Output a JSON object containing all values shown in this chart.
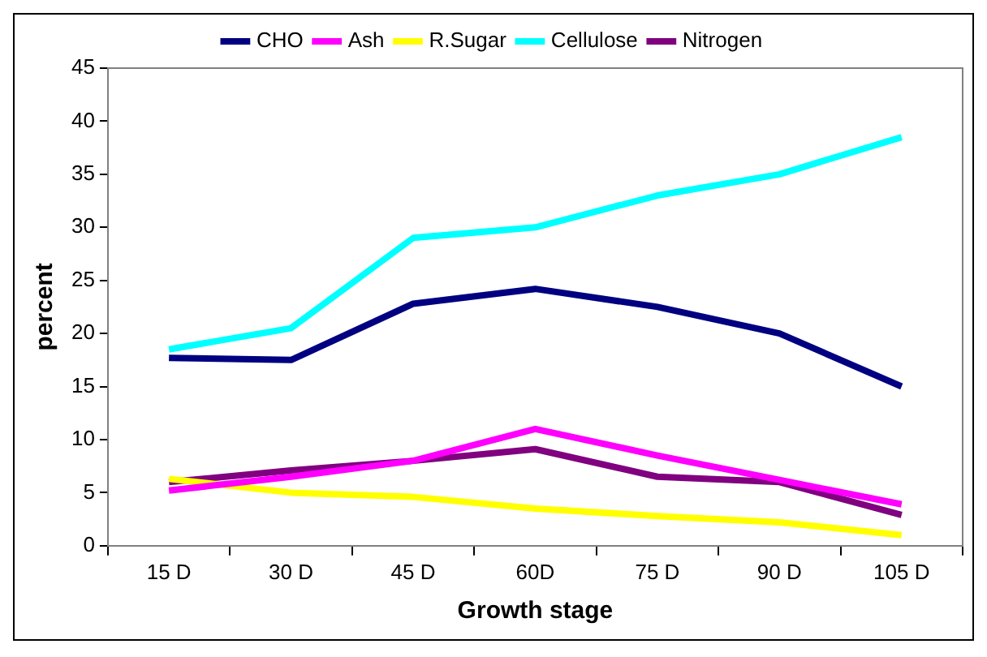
{
  "chart_data": {
    "type": "line",
    "xlabel": "Growth stage",
    "ylabel": "percent",
    "categories": [
      "15 D",
      "30 D",
      "45 D",
      "60D",
      "75 D",
      "90 D",
      "105 D"
    ],
    "series": [
      {
        "name": "CHO",
        "color": "#000080",
        "values": [
          17.7,
          17.5,
          22.8,
          24.2,
          22.5,
          20,
          15
        ]
      },
      {
        "name": "Ash",
        "color": "#ff00ff",
        "values": [
          5.2,
          6.5,
          8,
          11,
          8.5,
          6.2,
          3.9
        ]
      },
      {
        "name": "R.Sugar",
        "color": "#ffff00",
        "values": [
          6.3,
          5,
          4.6,
          3.5,
          2.8,
          2.2,
          1
        ]
      },
      {
        "name": "Cellulose",
        "color": "#00ffff",
        "values": [
          18.5,
          20.5,
          29,
          30,
          33,
          35,
          38.5
        ]
      },
      {
        "name": "Nitrogen",
        "color": "#800080",
        "values": [
          6,
          7.1,
          8,
          9.1,
          6.5,
          6,
          2.9
        ]
      }
    ],
    "ylim": [
      0,
      45
    ],
    "yticks": [
      0,
      5,
      10,
      15,
      20,
      25,
      30,
      35,
      40,
      45
    ],
    "grid": false,
    "legend": "top",
    "marker": "none",
    "line_style": "solid"
  }
}
